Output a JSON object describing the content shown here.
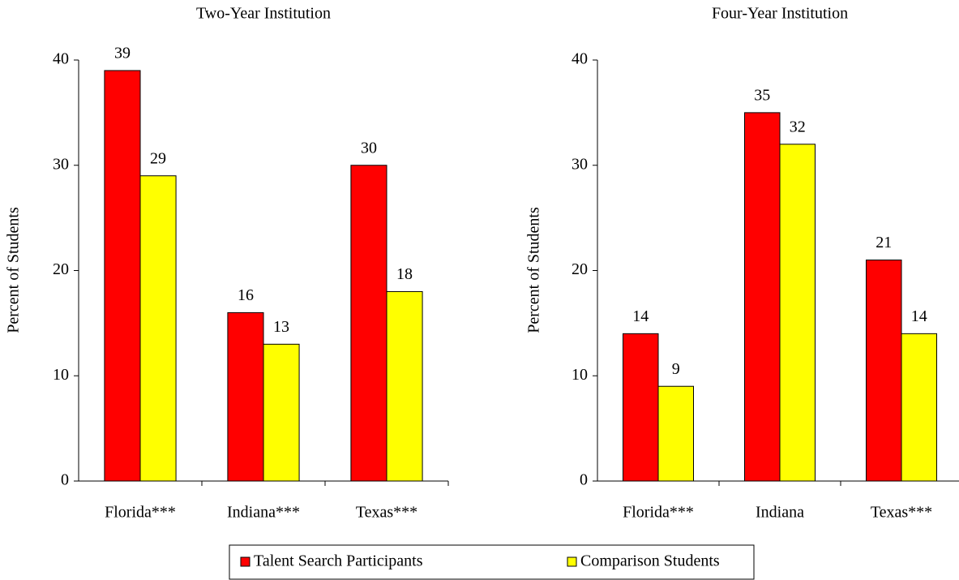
{
  "chart_data": [
    {
      "type": "bar",
      "title": "Two-Year Institution",
      "y_label": "Percent of Students",
      "categories": [
        "Florida***",
        "Indiana***",
        "Texas***"
      ],
      "series": [
        {
          "name": "Talent Search Participants",
          "color": "#ff0000",
          "values": [
            39,
            16,
            30
          ]
        },
        {
          "name": "Comparison Students",
          "color": "#ffff00",
          "values": [
            29,
            13,
            18
          ]
        }
      ],
      "ylim": [
        0,
        40
      ],
      "yticks": [
        0,
        10,
        20,
        30,
        40
      ]
    },
    {
      "type": "bar",
      "title": "Four-Year Institution",
      "y_label": "Percent of Students",
      "categories": [
        "Florida***",
        "Indiana",
        "Texas***"
      ],
      "series": [
        {
          "color": "#ff0000",
          "values": [
            14,
            35,
            21
          ]
        },
        {
          "color": "#ffff00",
          "values": [
            9,
            32,
            14
          ]
        }
      ],
      "ylim": [
        0,
        40
      ],
      "yticks": [
        0,
        10,
        20,
        30,
        40
      ]
    }
  ]
}
